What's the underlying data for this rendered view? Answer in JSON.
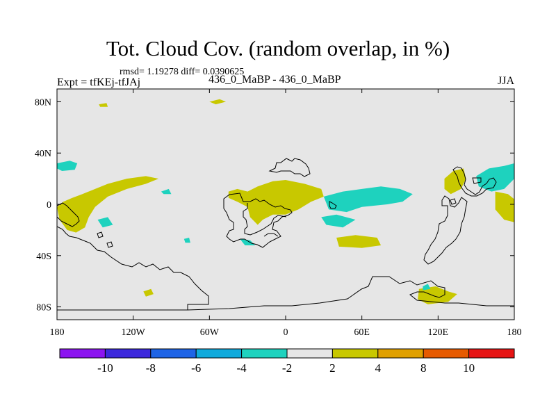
{
  "figure": {
    "title": "Tot. Cloud Cov. (random overlap, in %)",
    "stats": "rmsd= 1.19278 diff= 0.0390625",
    "experiment": "Expt = tfKEj-tfJAj",
    "run_label": "436_0_MaBP - 436_0_MaBP",
    "season": "JJA"
  },
  "chart_data": {
    "type": "heatmap",
    "title": "Tot. Cloud Cov. (random overlap, in %)",
    "xlim": [
      -180,
      180
    ],
    "ylim": [
      -90,
      90
    ],
    "x_ticks": [
      {
        "value": -180,
        "label": "180"
      },
      {
        "value": -120,
        "label": "120W"
      },
      {
        "value": -60,
        "label": "60W"
      },
      {
        "value": 0,
        "label": "0"
      },
      {
        "value": 60,
        "label": "60E"
      },
      {
        "value": 120,
        "label": "120E"
      },
      {
        "value": 180,
        "label": "180"
      }
    ],
    "y_ticks": [
      {
        "value": 80,
        "label": "80N"
      },
      {
        "value": 40,
        "label": "40N"
      },
      {
        "value": 0,
        "label": "0"
      },
      {
        "value": -40,
        "label": "40S"
      },
      {
        "value": -80,
        "label": "80S"
      }
    ],
    "background_color": "#e6e6e6",
    "colorbar": {
      "colors": [
        "#8c14f0",
        "#3c28dc",
        "#1e64e6",
        "#10aadc",
        "#1ed2be",
        "#e6e6e6",
        "#c8c800",
        "#e0a000",
        "#e65a00",
        "#e61414"
      ],
      "labels": [
        "-10",
        "-8",
        "-6",
        "-4",
        "-2",
        "2",
        "4",
        "8",
        "10"
      ]
    },
    "regions": [
      {
        "level": "2 to 4",
        "color": "#c8c800",
        "points": [
          [
            -180,
            -2
          ],
          [
            -175,
            2
          ],
          [
            -168,
            5
          ],
          [
            -160,
            8
          ],
          [
            -150,
            12
          ],
          [
            -140,
            16
          ],
          [
            -125,
            20
          ],
          [
            -110,
            22
          ],
          [
            -100,
            20
          ],
          [
            -110,
            16
          ],
          [
            -125,
            12
          ],
          [
            -140,
            6
          ],
          [
            -150,
            -2
          ],
          [
            -155,
            -10
          ],
          [
            -158,
            -18
          ],
          [
            -165,
            -22
          ],
          [
            -172,
            -20
          ],
          [
            -178,
            -12
          ]
        ]
      },
      {
        "level": "2 to 4",
        "color": "#c8c800",
        "points": [
          [
            -45,
            10
          ],
          [
            -38,
            12
          ],
          [
            -30,
            10
          ],
          [
            -22,
            14
          ],
          [
            -10,
            18
          ],
          [
            0,
            19
          ],
          [
            15,
            16
          ],
          [
            28,
            12
          ],
          [
            30,
            6
          ],
          [
            20,
            2
          ],
          [
            10,
            -4
          ],
          [
            0,
            -8
          ],
          [
            -10,
            -8
          ],
          [
            -18,
            -12
          ],
          [
            -22,
            -16
          ],
          [
            -28,
            -10
          ],
          [
            -30,
            -2
          ],
          [
            -38,
            2
          ],
          [
            -45,
            5
          ]
        ]
      },
      {
        "level": "2 to 4",
        "color": "#c8c800",
        "points": [
          [
            40,
            -26
          ],
          [
            55,
            -24
          ],
          [
            72,
            -26
          ],
          [
            75,
            -32
          ],
          [
            60,
            -34
          ],
          [
            42,
            -33
          ]
        ]
      },
      {
        "level": "2 to 4",
        "color": "#c8c800",
        "points": [
          [
            125,
            20
          ],
          [
            132,
            26
          ],
          [
            140,
            28
          ],
          [
            142,
            20
          ],
          [
            138,
            12
          ],
          [
            130,
            8
          ],
          [
            125,
            12
          ]
        ]
      },
      {
        "level": "2 to 4",
        "color": "#c8c800",
        "points": [
          [
            165,
            10
          ],
          [
            175,
            8
          ],
          [
            180,
            4
          ],
          [
            180,
            -14
          ],
          [
            172,
            -12
          ],
          [
            165,
            -4
          ]
        ]
      },
      {
        "level": "2 to 4",
        "color": "#c8c800",
        "points": [
          [
            105,
            -66
          ],
          [
            118,
            -64
          ],
          [
            128,
            -68
          ],
          [
            135,
            -70
          ],
          [
            128,
            -76
          ],
          [
            112,
            -78
          ],
          [
            104,
            -74
          ]
        ]
      },
      {
        "level": "2 to 4",
        "color": "#c8c800",
        "points": [
          [
            -112,
            -68
          ],
          [
            -106,
            -66
          ],
          [
            -104,
            -70
          ],
          [
            -110,
            -72
          ]
        ]
      },
      {
        "level": "2 to 4",
        "color": "#c8c800",
        "points": [
          [
            -60,
            80
          ],
          [
            -52,
            82
          ],
          [
            -47,
            80
          ],
          [
            -55,
            78
          ]
        ]
      },
      {
        "level": "2 to 4",
        "color": "#c8c800",
        "points": [
          [
            -147,
            78
          ],
          [
            -141,
            79
          ],
          [
            -140,
            76
          ],
          [
            -146,
            76
          ]
        ]
      },
      {
        "level": "-4 to -2",
        "color": "#1ed2be",
        "points": [
          [
            -180,
            32
          ],
          [
            -170,
            34
          ],
          [
            -164,
            32
          ],
          [
            -166,
            27
          ],
          [
            -176,
            26
          ],
          [
            -180,
            28
          ]
        ]
      },
      {
        "level": "-4 to -2",
        "color": "#1ed2be",
        "points": [
          [
            30,
            6
          ],
          [
            45,
            10
          ],
          [
            60,
            12
          ],
          [
            75,
            14
          ],
          [
            90,
            12
          ],
          [
            100,
            8
          ],
          [
            92,
            2
          ],
          [
            80,
            0
          ],
          [
            60,
            -2
          ],
          [
            48,
            -6
          ],
          [
            34,
            -4
          ]
        ]
      },
      {
        "level": "-4 to -2",
        "color": "#1ed2be",
        "points": [
          [
            28,
            -10
          ],
          [
            40,
            -8
          ],
          [
            55,
            -12
          ],
          [
            45,
            -18
          ],
          [
            32,
            -16
          ]
        ]
      },
      {
        "level": "-4 to -2",
        "color": "#1ed2be",
        "points": [
          [
            150,
            22
          ],
          [
            160,
            28
          ],
          [
            172,
            30
          ],
          [
            180,
            32
          ],
          [
            180,
            20
          ],
          [
            172,
            12
          ],
          [
            162,
            10
          ],
          [
            152,
            14
          ]
        ]
      },
      {
        "level": "-4 to -2",
        "color": "#1ed2be",
        "points": [
          [
            -36,
            -27
          ],
          [
            -28,
            -28
          ],
          [
            -24,
            -32
          ],
          [
            -32,
            -32
          ]
        ]
      },
      {
        "level": "-4 to -2",
        "color": "#1ed2be",
        "points": [
          [
            -148,
            -12
          ],
          [
            -140,
            -10
          ],
          [
            -136,
            -16
          ],
          [
            -144,
            -18
          ]
        ]
      },
      {
        "level": "-4 to -2",
        "color": "#1ed2be",
        "points": [
          [
            -98,
            10
          ],
          [
            -92,
            12
          ],
          [
            -90,
            8
          ],
          [
            -96,
            8
          ]
        ]
      },
      {
        "level": "-4 to -2",
        "color": "#1ed2be",
        "points": [
          [
            -80,
            -27
          ],
          [
            -76,
            -26
          ],
          [
            -75,
            -30
          ],
          [
            -79,
            -30
          ]
        ]
      },
      {
        "level": "-4 to -2",
        "color": "#1ed2be",
        "points": [
          [
            108,
            -64
          ],
          [
            112,
            -62
          ],
          [
            114,
            -66
          ],
          [
            108,
            -67
          ]
        ]
      }
    ]
  }
}
